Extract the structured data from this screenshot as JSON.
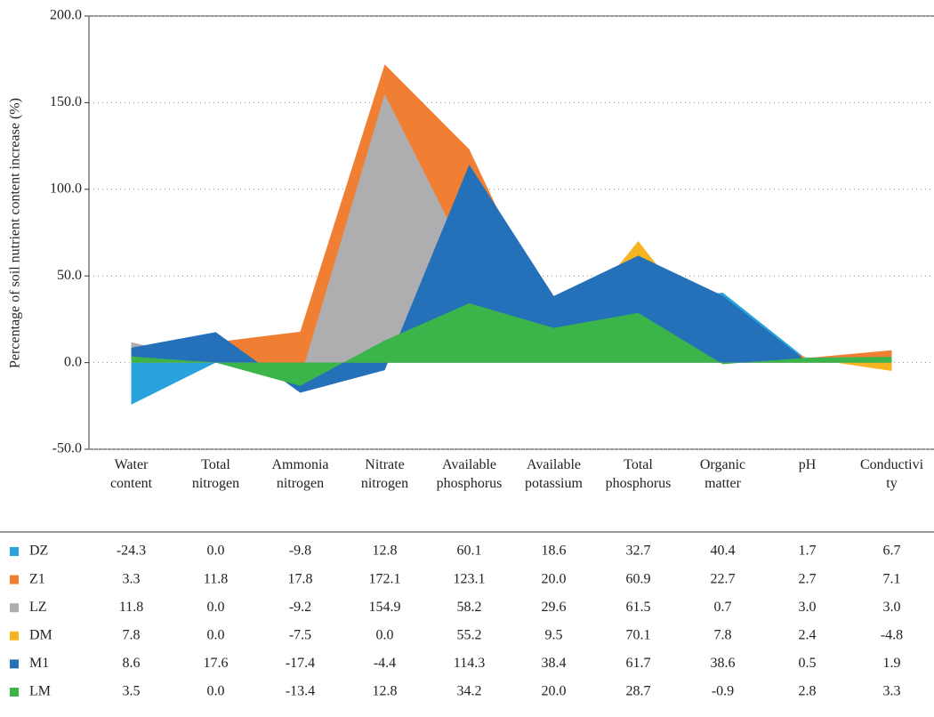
{
  "chart_data": {
    "type": "area",
    "y_label": "Percentage of soil nutrient content increase (%)",
    "categories": [
      "Water content",
      "Total nitrogen",
      "Ammonia nitrogen",
      "Nitrate nitrogen",
      "Available phosphorus",
      "Available potassium",
      "Total phosphorus",
      "Organic matter",
      "pH",
      "Conductivity"
    ],
    "ylim": [
      -50,
      200
    ],
    "yticks": [
      {
        "value": -50,
        "label": "-50.0"
      },
      {
        "value": 0,
        "label": "0.0"
      },
      {
        "value": 50,
        "label": "50.0"
      },
      {
        "value": 100,
        "label": "100.0"
      },
      {
        "value": 150,
        "label": "150.0"
      },
      {
        "value": 200,
        "label": "200.0"
      }
    ],
    "grid": true,
    "series": [
      {
        "name": "DZ",
        "color": "#29a3dc",
        "values": [
          -24.3,
          0,
          -9.8,
          12.8,
          60.1,
          18.6,
          32.7,
          40.4,
          1.7,
          6.7
        ],
        "value_labels": [
          "-24.3",
          "0.0",
          "-9.8",
          "12.8",
          "60.1",
          "18.6",
          "32.7",
          "40.4",
          "1.7",
          "6.7"
        ]
      },
      {
        "name": "Z1",
        "color": "#f07f33",
        "values": [
          3.3,
          11.8,
          17.8,
          172.1,
          123.1,
          20,
          60.9,
          22.7,
          2.7,
          7.1
        ],
        "value_labels": [
          "3.3",
          "11.8",
          "17.8",
          "172.1",
          "123.1",
          "20.0",
          "60.9",
          "22.7",
          "2.7",
          "7.1"
        ]
      },
      {
        "name": "LZ",
        "color": "#aeaeb0",
        "values": [
          11.8,
          0,
          -9.2,
          154.9,
          58.2,
          29.6,
          61.5,
          0.7,
          3,
          3
        ],
        "value_labels": [
          "11.8",
          "0.0",
          "-9.2",
          "154.9",
          "58.2",
          "29.6",
          "61.5",
          "0.7",
          "3.0",
          "3.0"
        ]
      },
      {
        "name": "DM",
        "color": "#f6b520",
        "values": [
          7.8,
          0,
          -7.5,
          0,
          55.2,
          9.5,
          70.1,
          7.8,
          2.4,
          -4.8
        ],
        "value_labels": [
          "7.8",
          "0.0",
          "-7.5",
          "0.0",
          "55.2",
          "9.5",
          "70.1",
          "7.8",
          "2.4",
          "-4.8"
        ]
      },
      {
        "name": "M1",
        "color": "#2471b9",
        "values": [
          8.6,
          17.6,
          -17.4,
          -4.4,
          114.3,
          38.4,
          61.7,
          38.6,
          0.5,
          1.9
        ],
        "value_labels": [
          "8.6",
          "17.6",
          "-17.4",
          "-4.4",
          "114.3",
          "38.4",
          "61.7",
          "38.6",
          "0.5",
          "1.9"
        ]
      },
      {
        "name": "LM",
        "color": "#3bb54a",
        "values": [
          3.5,
          0,
          -13.4,
          12.8,
          34.2,
          20,
          28.7,
          -0.9,
          2.8,
          3.3
        ],
        "value_labels": [
          "3.5",
          "0.0",
          "-13.4",
          "12.8",
          "34.2",
          "20.0",
          "28.7",
          "-0.9",
          "2.8",
          "3.3"
        ]
      }
    ]
  }
}
